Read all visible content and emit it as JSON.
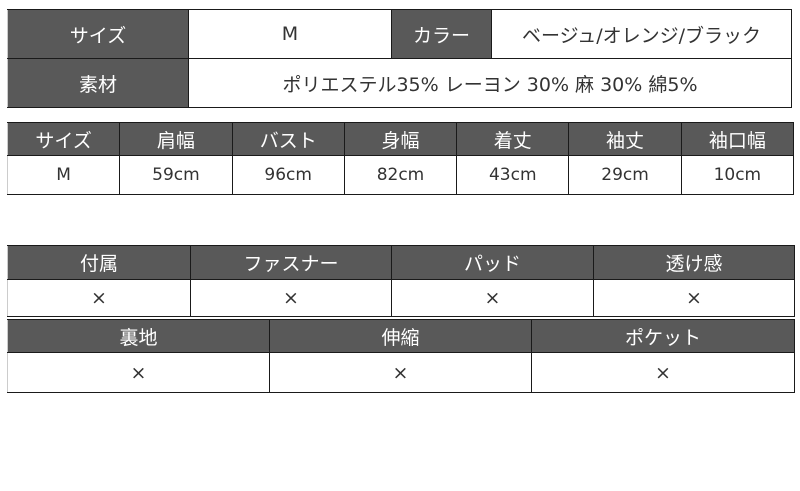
{
  "summary": {
    "size_label": "サイズ",
    "size_value": "M",
    "color_label": "カラー",
    "color_value": "ベージュ/オレンジ/ブラック",
    "material_label": "素材",
    "material_value": "ポリエステル35% レーヨン 30% 麻 30% 綿5%"
  },
  "measurements": {
    "headers": [
      "サイズ",
      "肩幅",
      "バスト",
      "身幅",
      "着丈",
      "袖丈",
      "袖口幅"
    ],
    "values": [
      "M",
      "59cm",
      "96cm",
      "82cm",
      "43cm",
      "29cm",
      "10cm"
    ]
  },
  "features1": {
    "headers": [
      "付属",
      "ファスナー",
      "パッド",
      "透け感"
    ],
    "values": [
      "×",
      "×",
      "×",
      "×"
    ]
  },
  "features2": {
    "headers": [
      "裏地",
      "伸縮",
      "ポケット"
    ],
    "values": [
      "×",
      "×",
      "×"
    ]
  },
  "colors": {
    "header_bg": "#595959"
  }
}
